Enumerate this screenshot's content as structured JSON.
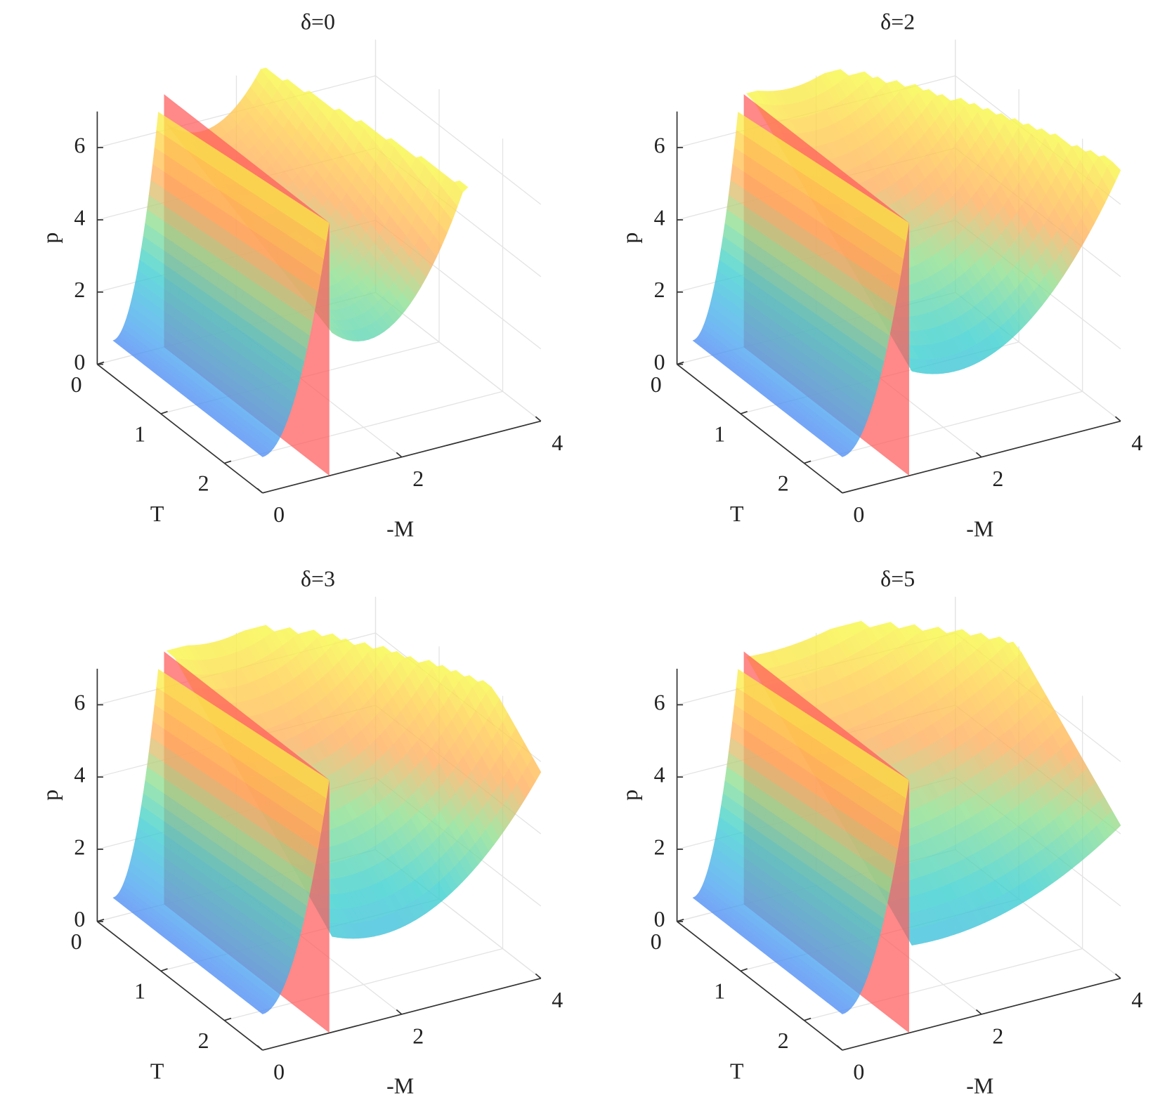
{
  "chart_data": [
    {
      "type": "surface3d",
      "title": "δ=0",
      "xlabel": "-M",
      "ylabel": "T",
      "zlabel": "p",
      "xlim": [
        0,
        4
      ],
      "xticks": [
        0,
        2,
        4
      ],
      "ylim": [
        0,
        2.6
      ],
      "yticks": [
        0,
        1,
        2
      ],
      "zlim": [
        0,
        7
      ],
      "zticks": [
        0,
        2,
        4,
        6
      ],
      "grid": true
    },
    {
      "type": "surface3d",
      "title": "δ=2",
      "xlabel": "-M",
      "ylabel": "T",
      "zlabel": "p",
      "xlim": [
        0,
        4
      ],
      "xticks": [
        0,
        2,
        4
      ],
      "ylim": [
        0,
        2.6
      ],
      "yticks": [
        0,
        1,
        2
      ],
      "zlim": [
        0,
        7
      ],
      "zticks": [
        0,
        2,
        4,
        6
      ],
      "grid": true
    },
    {
      "type": "surface3d",
      "title": "δ=3",
      "xlabel": "-M",
      "ylabel": "T",
      "zlabel": "p",
      "xlim": [
        0,
        4
      ],
      "xticks": [
        0,
        2,
        4
      ],
      "ylim": [
        0,
        2.6
      ],
      "yticks": [
        0,
        1,
        2
      ],
      "zlim": [
        0,
        7
      ],
      "zticks": [
        0,
        2,
        4,
        6
      ],
      "grid": true
    },
    {
      "type": "surface3d",
      "title": "δ=5",
      "xlabel": "-M",
      "ylabel": "T",
      "zlabel": "p",
      "xlim": [
        0,
        4
      ],
      "xticks": [
        0,
        2,
        4
      ],
      "ylim": [
        0,
        2.6
      ],
      "yticks": [
        0,
        1,
        2
      ],
      "zlim": [
        0,
        7
      ],
      "zticks": [
        0,
        2,
        4,
        6
      ],
      "grid": true
    }
  ]
}
